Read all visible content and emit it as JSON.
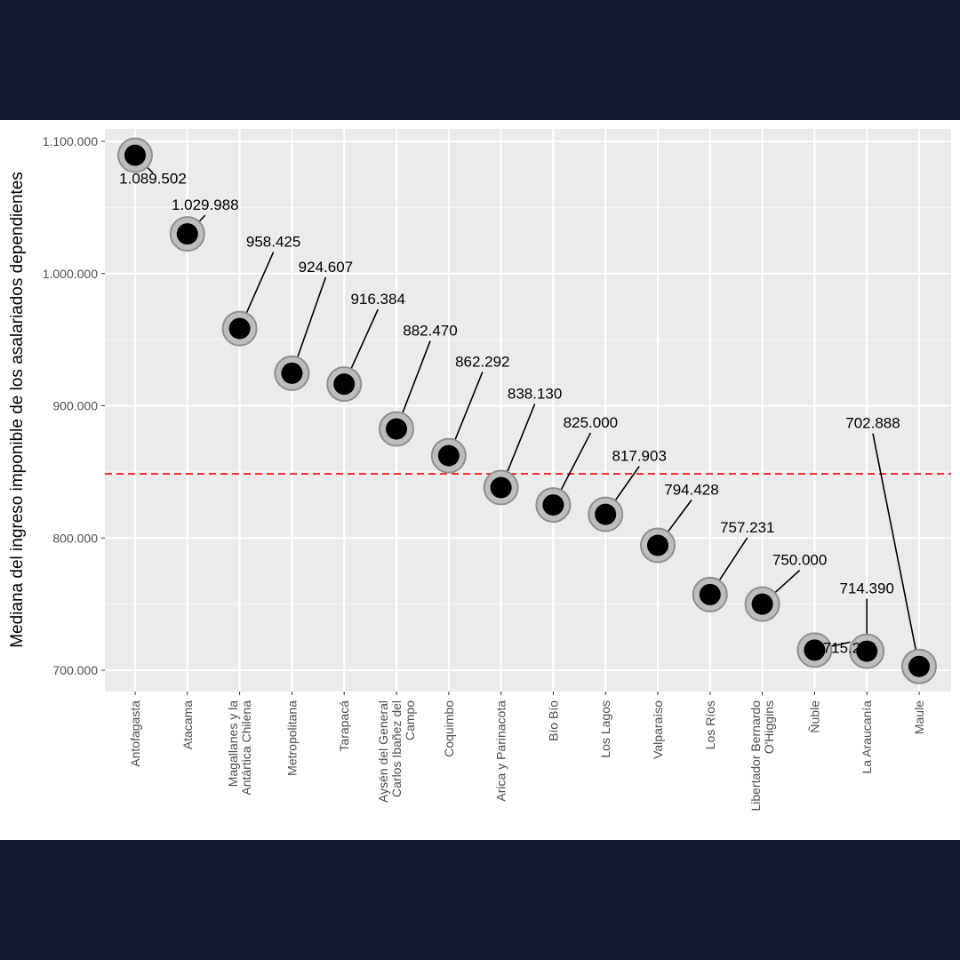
{
  "chart_data": {
    "type": "scatter",
    "ylabel": "Mediana del ingreso imponible de los asalariados dependientes",
    "xlabel": "",
    "ylim": [
      684000,
      1109000
    ],
    "yticks": [
      700000,
      800000,
      900000,
      1000000,
      1100000
    ],
    "ytick_labels": [
      "700.000",
      "800.000",
      "900.000",
      "1.000.000",
      "1.100.000"
    ],
    "reference_line": {
      "value": 848500,
      "color": "#ff0000",
      "style": "dashed"
    },
    "grid": true,
    "point_color": "#000000",
    "categories": [
      [
        "Antofagasta"
      ],
      [
        "Atacama"
      ],
      [
        "Magallanes y la",
        "Antártica Chilena"
      ],
      [
        "Metropolitana"
      ],
      [
        "Tarapacá"
      ],
      [
        "Aysén del General",
        "Carlos Ibañez del",
        "Campo"
      ],
      [
        "Coquimbo"
      ],
      [
        "Arica y Parinacota"
      ],
      [
        "Bío Bío"
      ],
      [
        "Los Lagos"
      ],
      [
        "Valparaíso"
      ],
      [
        "Los Ríos"
      ],
      [
        "Libertador Bernardo",
        "O'Higgins"
      ],
      [
        "Ñuble"
      ],
      [
        "La Araucanía"
      ],
      [
        "Maule"
      ]
    ],
    "values": [
      1089502,
      1029988,
      958425,
      924607,
      916384,
      882470,
      862292,
      838130,
      825000,
      817903,
      794428,
      757231,
      750000,
      715221,
      714390,
      702888
    ],
    "value_labels": [
      "1.089.502",
      "1.029.988",
      "958.425",
      "924.607",
      "916.384",
      "882.470",
      "862.292",
      "838.130",
      "825.000",
      "817.903",
      "794.428",
      "757.231",
      "750.000",
      "715.221",
      "714.390",
      "702.888"
    ],
    "label_offsets": [
      [
        20,
        32
      ],
      [
        20,
        -27
      ],
      [
        38,
        -92
      ],
      [
        38,
        -114
      ],
      [
        38,
        -90
      ],
      [
        38,
        -105
      ],
      [
        38,
        -100
      ],
      [
        38,
        -100
      ],
      [
        42,
        -87
      ],
      [
        38,
        -60
      ],
      [
        38,
        -57
      ],
      [
        42,
        -70
      ],
      [
        42,
        -44
      ],
      [
        40,
        3
      ],
      [
        0,
        -65
      ],
      [
        -52,
        -268
      ]
    ]
  }
}
